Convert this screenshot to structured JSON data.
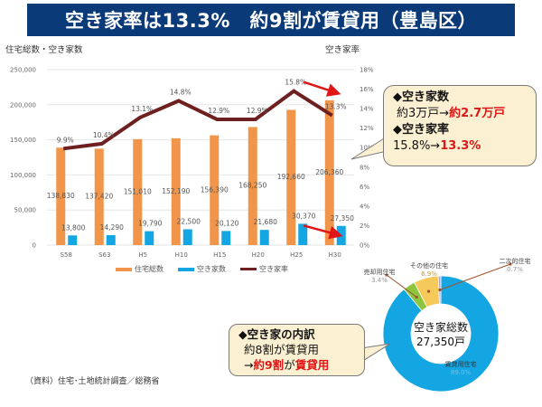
{
  "header": {
    "title": "空き家率は13.3%　約9割が賃貸用（豊島区）"
  },
  "colors": {
    "header_bg": "#0b3a78",
    "total_housing": "#f0954a",
    "vacant_houses": "#14a5e3",
    "vacancy_rate": "#6e1f1f",
    "arrow": "#e01515",
    "callout_bg": "#fcf0d2",
    "rental": "#14a5e3",
    "for_sale": "#8cc63f",
    "other": "#f5c95a",
    "secondary": "#b9a3e3"
  },
  "chart_data": [
    {
      "type": "bar",
      "title": "",
      "ylabel": "住宅総数・空き家数",
      "y2label": "空き家率",
      "categories": [
        "S58",
        "S63",
        "H5",
        "H10",
        "H15",
        "H20",
        "H25",
        "H30"
      ],
      "ylim": [
        0,
        250000
      ],
      "yticks": [
        "0",
        "50,000",
        "100,000",
        "150,000",
        "200,000",
        "250,000"
      ],
      "y2lim": [
        0,
        18
      ],
      "y2ticks": [
        "0%",
        "2%",
        "4%",
        "6%",
        "8%",
        "10%",
        "12%",
        "14%",
        "16%",
        "18%"
      ],
      "grid": true,
      "legend_position": "bottom",
      "series": [
        {
          "name": "住宅総数",
          "kind": "bar",
          "axis": "left",
          "values": [
            138830,
            137420,
            151010,
            152190,
            156390,
            168250,
            192660,
            206360
          ],
          "labels": [
            "138,830",
            "137,420",
            "151,010",
            "152,190",
            "156,390",
            "168,250",
            "192,660",
            "206,360"
          ]
        },
        {
          "name": "空き家数",
          "kind": "bar",
          "axis": "left",
          "values": [
            13800,
            14290,
            19790,
            22500,
            20120,
            21680,
            30370,
            27350
          ],
          "labels": [
            "13,800",
            "14,290",
            "19,790",
            "22,500",
            "20,120",
            "21,680",
            "30,370",
            "27,350"
          ]
        },
        {
          "name": "空き家率",
          "kind": "line",
          "axis": "right",
          "values": [
            9.9,
            10.4,
            13.1,
            14.8,
            12.9,
            12.9,
            15.8,
            13.3
          ],
          "labels": [
            "9.9%",
            "10.4%",
            "13.1%",
            "14.8%",
            "12.9%",
            "12.9%",
            "15.8%",
            "13.3%"
          ]
        }
      ],
      "annotations": [
        "arrow from H25 rate to H30 rate",
        "arrow from H25 vacant count to H30 vacant count"
      ]
    },
    {
      "type": "pie",
      "subtype": "donut",
      "center_text": [
        "空き家総数",
        "27,350戸"
      ],
      "slices": [
        {
          "name": "賃貸用住宅",
          "value": 89.0,
          "label": "89.0%"
        },
        {
          "name": "売却用住宅",
          "value": 3.4,
          "label": "3.4%"
        },
        {
          "name": "その他の住宅",
          "value": 6.9,
          "label": "6.9%"
        },
        {
          "name": "二次的住宅",
          "value": 0.7,
          "label": "0.7%"
        }
      ]
    }
  ],
  "callout_top": {
    "line1": "◆空き家数",
    "line2_prefix": "約3万戸→",
    "line2_highlight": "約2.7万戸",
    "line3": "◆空き家率",
    "line4_prefix": "15.8%→",
    "line4_highlight": "13.3%"
  },
  "callout_bottom": {
    "line1": "◆空き家の内訳",
    "line2": "約8割が賃貸用",
    "line3_prefix": "→",
    "line3_highlight1": "約9割",
    "line3_mid": "が",
    "line3_highlight2": "賃貸用"
  },
  "source": "（資料）住宅･土地統計調査／総務省"
}
